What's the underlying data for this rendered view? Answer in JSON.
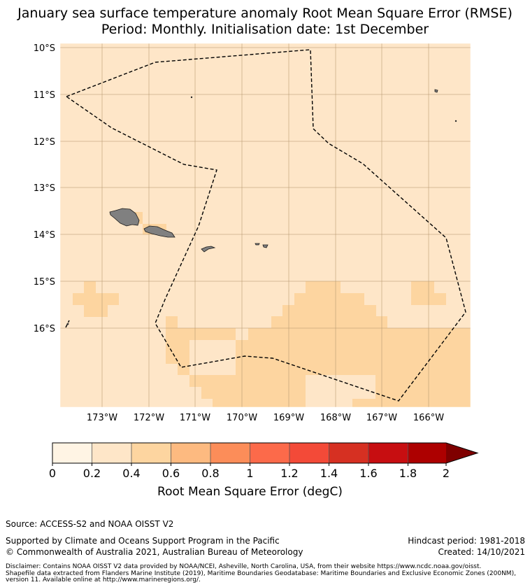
{
  "header": {
    "title_line1": "January sea surface temperature anomaly Root Mean Square Error (RMSE)",
    "title_line2": "Period: Monthly. Initialisation date: 1st December"
  },
  "map": {
    "lat_ticks": [
      "10°S",
      "11°S",
      "12°S",
      "13°S",
      "14°S",
      "15°S",
      "16°S"
    ],
    "lon_ticks": [
      "173°W",
      "172°W",
      "171°W",
      "170°W",
      "169°W",
      "168°W",
      "167°W",
      "166°W"
    ],
    "colors": {
      "ocean_low": "#fee6c8",
      "cell_mid": "#fdd5a0",
      "land": "#808080",
      "gridline": "#b89a72",
      "boundary": "#000000"
    }
  },
  "colorbar": {
    "ticks": [
      "0",
      "0.2",
      "0.4",
      "0.6",
      "0.8",
      "1",
      "1.2",
      "1.4",
      "1.6",
      "1.8",
      "2"
    ],
    "colors": [
      "#fff4e4",
      "#fee6c8",
      "#fdd5a0",
      "#fdba80",
      "#fc8d59",
      "#fc6a4a",
      "#f34a38",
      "#d63022",
      "#c70e11",
      "#ad0000"
    ],
    "extend_color": "#7f0000",
    "label": "Root Mean Square Error (degC)"
  },
  "footer": {
    "source": "Source: ACCESS-S2 and NOAA OISST V2",
    "support": "Supported by Climate and Oceans Support Program in the Pacific",
    "copyright": "© Commonwealth of Australia 2021, Australian Bureau of Meteorology",
    "hindcast": "Hindcast period: 1981-2018",
    "created": "Created: 14/10/2021",
    "disclaimer": "Disclaimer: Contains NOAA OISST V2 data provided by NOAA/NCEI, Asheville, North Carolina, USA, from their website https://www.ncdc.noaa.gov/oisst.\nShapefile data extracted from Flanders Marine Institute (2019), Maritime Boundaries Geodatabase: Maritime Boundaries and Exclusive Economic Zones (200NM),\nversion 11. Available online at http://www.marineregions.org/."
  }
}
